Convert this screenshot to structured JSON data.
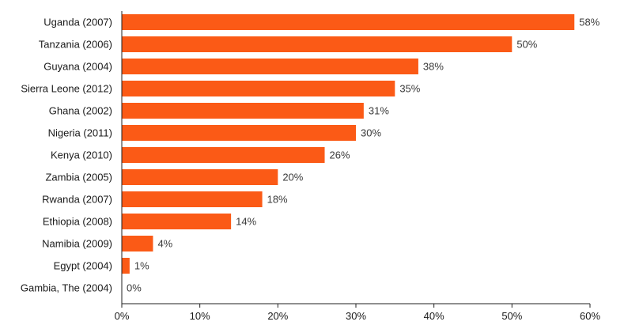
{
  "chart_data": {
    "type": "bar",
    "orientation": "horizontal",
    "categories": [
      "Uganda (2007)",
      "Tanzania (2006)",
      "Guyana (2004)",
      "Sierra Leone (2012)",
      "Ghana (2002)",
      "Nigeria (2011)",
      "Kenya (2010)",
      "Zambia (2005)",
      "Rwanda (2007)",
      "Ethiopia (2008)",
      "Namibia (2009)",
      "Egypt (2004)",
      "Gambia, The (2004)"
    ],
    "values": [
      58,
      50,
      38,
      35,
      31,
      30,
      26,
      20,
      18,
      14,
      4,
      1,
      0
    ],
    "value_labels": [
      "58%",
      "50%",
      "38%",
      "35%",
      "31%",
      "30%",
      "26%",
      "20%",
      "18%",
      "14%",
      "4%",
      "1%",
      "0%"
    ],
    "xlim": [
      0,
      60
    ],
    "xticks": [
      0,
      10,
      20,
      30,
      40,
      50,
      60
    ],
    "xtick_labels": [
      "0%",
      "10%",
      "20%",
      "30%",
      "40%",
      "50%",
      "60%"
    ],
    "title": "",
    "xlabel": "",
    "ylabel": "",
    "grid": false,
    "bar_color": "#fb5a16"
  }
}
